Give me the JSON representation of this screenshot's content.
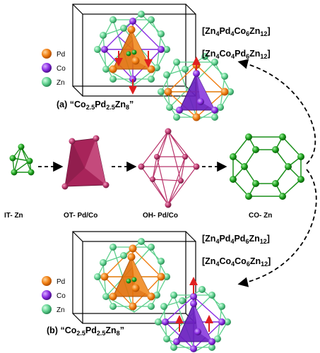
{
  "legend": {
    "items": [
      {
        "label": "Pd",
        "color": "#f07d10"
      },
      {
        "label": "Co",
        "color": "#8a2be2"
      },
      {
        "label": "Zn",
        "color": "#5ccf8c"
      }
    ]
  },
  "structures": {
    "a": {
      "label_prefix": "(a)",
      "formula_main": "“Co",
      "sub1": "2.5",
      "mid": "Pd",
      "sub2": "2.5",
      "end": "Zn",
      "sub3": "8",
      "close": "”",
      "comp1": {
        "p1": "[Zn",
        "s1": "4",
        "p2": "Pd",
        "s2": "4",
        "p3": "Co",
        "s3": "6",
        "p4": "Zn",
        "s4": "12",
        "p5": "]"
      },
      "comp2": {
        "p1": "[Zn",
        "s1": "4",
        "p2": "Co",
        "s2": "4",
        "p3": "Pd",
        "s3": "6",
        "p4": "Zn",
        "s4": "12",
        "p5": "]"
      }
    },
    "b": {
      "label_prefix": "(b)",
      "formula_main": "“Co",
      "sub1": "2.5",
      "mid": "Pd",
      "sub2": "2.5",
      "end": "Zn",
      "sub3": "8",
      "close": "”",
      "comp1": {
        "p1": "[Zn",
        "s1": "4",
        "p2": "Pd",
        "s2": "4",
        "p3": "Pd",
        "s3": "6",
        "p4": "Zn",
        "s4": "12",
        "p5": "]"
      },
      "comp2": {
        "p1": "[Zn",
        "s1": "4",
        "p2": "Co",
        "s2": "4",
        "p3": "Co",
        "s3": "6",
        "p4": "Zn",
        "s4": "12",
        "p5": "]"
      }
    }
  },
  "shells": {
    "it": "IT- Zn",
    "ot": "OT- Pd/Co",
    "oh": "OH- Pd/Co",
    "co": "CO- Zn"
  },
  "colors": {
    "pd": "#f07d10",
    "co": "#8a2be2",
    "zn": "#5ccf8c",
    "zn_dark": "#1a8f1a",
    "shell_magenta": "#b8336a",
    "arrow_red": "#e02020"
  }
}
